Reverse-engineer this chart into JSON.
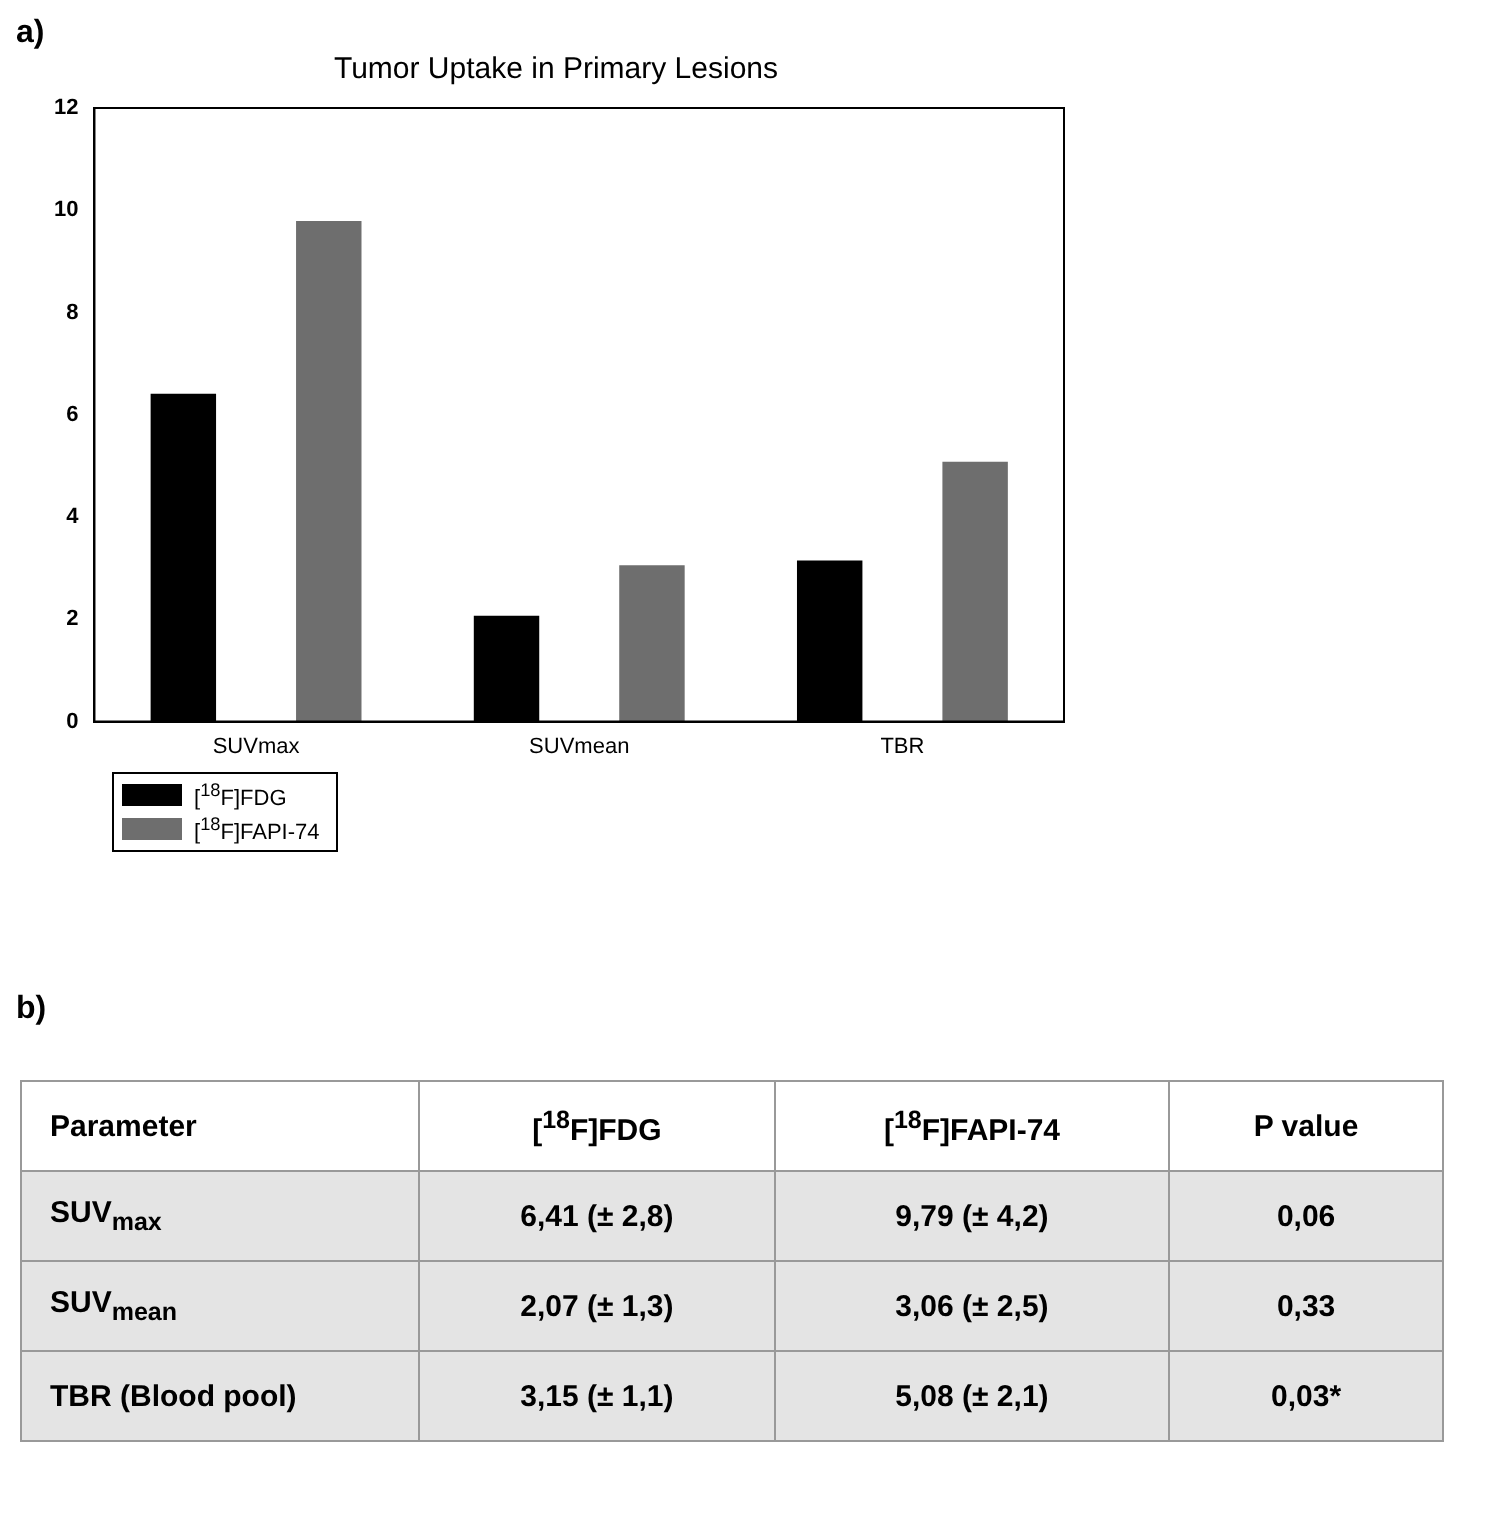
{
  "chart_data": {
    "type": "bar",
    "title": "Tumor Uptake in Primary Lesions",
    "categories": [
      "SUVmax",
      "SUVmean",
      "TBR"
    ],
    "series": [
      {
        "name": "[$^{18}$F]FDG",
        "color": "#000000",
        "values": [
          6.41,
          2.07,
          3.15
        ]
      },
      {
        "name": "[$^{18}$F]FAPI-74",
        "color": "#6e6e6e",
        "values": [
          9.79,
          3.06,
          5.08
        ]
      }
    ],
    "ylim": [
      0,
      12
    ],
    "yticks": [
      0,
      2,
      4,
      6,
      8,
      10,
      12
    ],
    "legend": "bottom left",
    "annotations": [
      "a)",
      "b)",
      "Parameter",
      "P value",
      "SUV$_{max}$",
      "SUV$_{mean}$",
      "TBR (Blood pool)",
      "0,06",
      "0,33",
      "0,03*",
      "6,41 (± 2,8)",
      "2,07 (± 1,3)",
      "3,15 (± 1,1)",
      "9,79 (± 4,2)",
      "3,06 (± 2,5)",
      "5,08 (± 2,1)"
    ]
  }
}
